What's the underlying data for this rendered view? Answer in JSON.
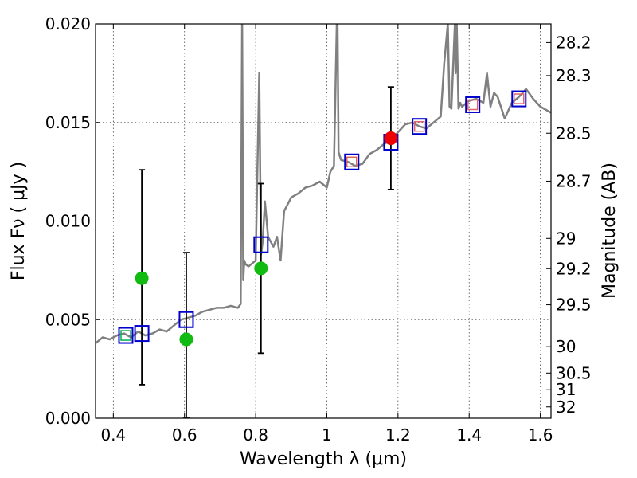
{
  "chart_data": {
    "type": "scatter",
    "xlabel": "Wavelength  λ (μm)",
    "ylabel": "Flux  Fν  ( μJy )",
    "y2label": "Magnitude (AB)",
    "xlim": [
      0.35,
      1.63
    ],
    "ylim": [
      0.0,
      0.02
    ],
    "grid": true,
    "x_ticks": [
      {
        "value": 0.4,
        "label": "0.4"
      },
      {
        "value": 0.6,
        "label": "0.6"
      },
      {
        "value": 0.8,
        "label": "0.8"
      },
      {
        "value": 1.0,
        "label": "1"
      },
      {
        "value": 1.2,
        "label": "1.2"
      },
      {
        "value": 1.4,
        "label": "1.4"
      },
      {
        "value": 1.6,
        "label": "1.6"
      }
    ],
    "y_ticks": [
      {
        "value": 0.0,
        "label": "0.000"
      },
      {
        "value": 0.005,
        "label": "0.005"
      },
      {
        "value": 0.01,
        "label": "0.010"
      },
      {
        "value": 0.015,
        "label": "0.015"
      },
      {
        "value": 0.02,
        "label": "0.020"
      }
    ],
    "y2_ticks": [
      {
        "value": 28.2,
        "label": "28.2"
      },
      {
        "value": 28.3,
        "label": "28.3"
      },
      {
        "value": 28.5,
        "label": "28.5"
      },
      {
        "value": 28.7,
        "label": "28.7"
      },
      {
        "value": 29,
        "label": "29"
      },
      {
        "value": 29.2,
        "label": "29.2"
      },
      {
        "value": 29.5,
        "label": "29.5"
      },
      {
        "value": 30,
        "label": "30"
      },
      {
        "value": 30.5,
        "label": "30.5"
      },
      {
        "value": 31,
        "label": "31"
      },
      {
        "value": 32,
        "label": "32"
      }
    ],
    "series": [
      {
        "kind": "line",
        "color": "#808080",
        "x": [
          0.35,
          0.37,
          0.39,
          0.41,
          0.43,
          0.45,
          0.47,
          0.49,
          0.51,
          0.53,
          0.55,
          0.57,
          0.59,
          0.61,
          0.63,
          0.65,
          0.67,
          0.69,
          0.71,
          0.73,
          0.75,
          0.758,
          0.762,
          0.765,
          0.768,
          0.772,
          0.78,
          0.8,
          0.81,
          0.815,
          0.82,
          0.826,
          0.835,
          0.85,
          0.86,
          0.87,
          0.88,
          0.9,
          0.92,
          0.94,
          0.96,
          0.98,
          1.0,
          1.01,
          1.02,
          1.028,
          1.03,
          1.033,
          1.04,
          1.06,
          1.08,
          1.1,
          1.12,
          1.14,
          1.16,
          1.18,
          1.2,
          1.22,
          1.24,
          1.26,
          1.28,
          1.3,
          1.32,
          1.33,
          1.34,
          1.345,
          1.35,
          1.36,
          1.362,
          1.365,
          1.37,
          1.375,
          1.38,
          1.4,
          1.42,
          1.44,
          1.45,
          1.46,
          1.47,
          1.48,
          1.5,
          1.52,
          1.54,
          1.56,
          1.58,
          1.6,
          1.63
        ],
        "y": [
          0.0038,
          0.0041,
          0.004,
          0.0042,
          0.0043,
          0.0041,
          0.0044,
          0.0042,
          0.0043,
          0.0045,
          0.0044,
          0.0047,
          0.005,
          0.0051,
          0.0052,
          0.0054,
          0.0055,
          0.0056,
          0.0056,
          0.0057,
          0.0056,
          0.0058,
          0.02,
          0.007,
          0.008,
          0.0078,
          0.0077,
          0.008,
          0.0175,
          0.0083,
          0.009,
          0.011,
          0.0092,
          0.0087,
          0.0092,
          0.008,
          0.0105,
          0.0112,
          0.0114,
          0.0117,
          0.0118,
          0.012,
          0.0117,
          0.0125,
          0.0128,
          0.02,
          0.02,
          0.0135,
          0.0131,
          0.013,
          0.0128,
          0.0129,
          0.0134,
          0.0136,
          0.0139,
          0.0141,
          0.0145,
          0.0149,
          0.015,
          0.0148,
          0.0147,
          0.015,
          0.0153,
          0.018,
          0.02,
          0.0158,
          0.0157,
          0.02,
          0.0175,
          0.02,
          0.0157,
          0.016,
          0.0158,
          0.0161,
          0.0162,
          0.016,
          0.0175,
          0.0158,
          0.0165,
          0.0163,
          0.0152,
          0.016,
          0.0163,
          0.0167,
          0.0162,
          0.0158,
          0.0155
        ]
      },
      {
        "kind": "hollow-square",
        "color": "#0000cc",
        "x": [
          0.435,
          0.48,
          0.605,
          0.815,
          1.07,
          1.18,
          1.26,
          1.41,
          1.54
        ],
        "y": [
          0.0042,
          0.0043,
          0.005,
          0.0088,
          0.013,
          0.014,
          0.0148,
          0.0159,
          0.0162
        ]
      },
      {
        "kind": "small-square",
        "color": "#e06666",
        "x": [
          1.07,
          1.26,
          1.41,
          1.54
        ],
        "y": [
          0.013,
          0.0148,
          0.0159,
          0.0162
        ]
      },
      {
        "kind": "small-square",
        "color": "#00b050",
        "x": [
          0.435
        ],
        "y": [
          0.0042
        ]
      },
      {
        "kind": "circle",
        "color": "#11bb11",
        "x": [
          0.48,
          0.605,
          0.815
        ],
        "y": [
          0.0071,
          0.004,
          0.0076
        ]
      },
      {
        "kind": "circle",
        "color": "#ee0000",
        "x": [
          1.18
        ],
        "y": [
          0.0142
        ]
      }
    ],
    "error_bars": [
      {
        "x": 0.48,
        "low": 0.0017,
        "high": 0.0126
      },
      {
        "x": 0.605,
        "low": 0.0,
        "high": 0.0084
      },
      {
        "x": 0.815,
        "low": 0.0033,
        "high": 0.0119
      },
      {
        "x": 1.18,
        "low": 0.0116,
        "high": 0.0168
      }
    ]
  }
}
